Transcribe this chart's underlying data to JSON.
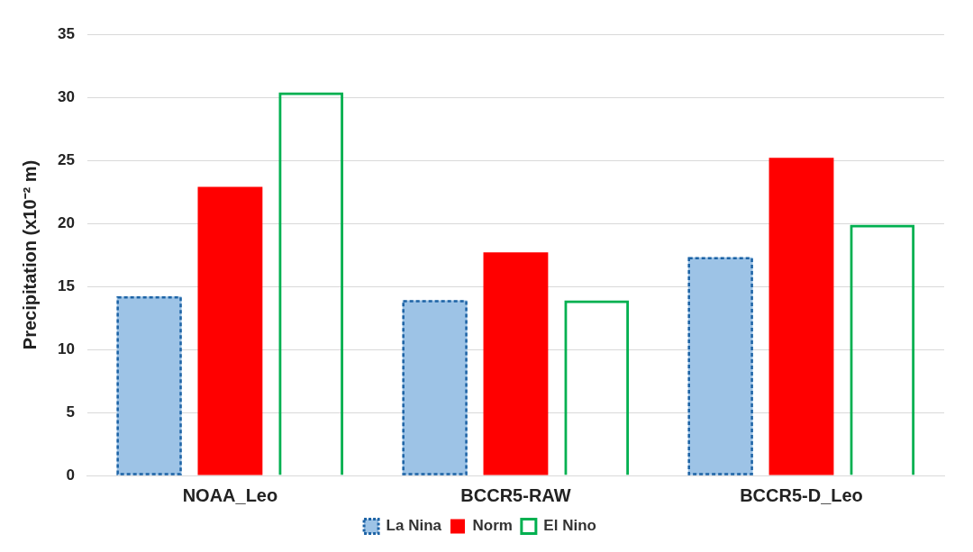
{
  "chart_data": {
    "type": "bar",
    "ylabel": "Precipitation (x10⁻² m)",
    "categories": [
      "NOAA_Leo",
      "BCCR5-RAW",
      "BCCR5-D_Leo"
    ],
    "series": [
      {
        "name": "La Nina",
        "color": "#9dc3e6",
        "line_style": "dashed",
        "values": [
          14.2,
          13.9,
          17.3
        ]
      },
      {
        "name": "Norm",
        "color": "#ff0000",
        "values": [
          22.9,
          17.7,
          25.2
        ]
      },
      {
        "name": "El Nino",
        "color": "#00b050",
        "line_style": "solid",
        "values": [
          30.4,
          13.9,
          19.9
        ]
      }
    ],
    "ylim": [
      0,
      35
    ],
    "yticks": [
      0,
      5,
      10,
      15,
      20,
      25,
      30,
      35
    ],
    "grid": "y",
    "legend": "bottom"
  }
}
